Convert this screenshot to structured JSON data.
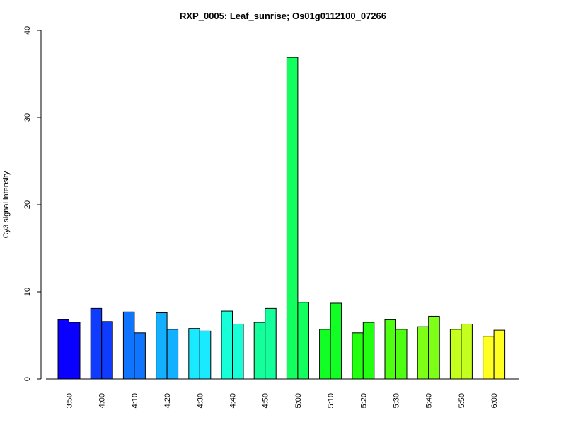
{
  "chart_data": {
    "type": "bar",
    "title": "RXP_0005: Leaf_sunrise; Os01g0112100_07266",
    "xlabel": "",
    "ylabel": "Cy3 signal intensity",
    "ylim": [
      0,
      40
    ],
    "yticks": [
      "0",
      "10",
      "20",
      "30",
      "40"
    ],
    "grid": false,
    "legend": "none",
    "categories": [
      "3:50",
      "4:00",
      "4:10",
      "4:20",
      "4:30",
      "4:40",
      "4:50",
      "5:00",
      "5:10",
      "5:20",
      "5:30",
      "5:40",
      "5:50",
      "6:00"
    ],
    "group_colors": [
      "#0A00FF",
      "#0F3BFF",
      "#0F75FF",
      "#12B0FF",
      "#19EAFF",
      "#16FFD8",
      "#14FF9B",
      "#13FF60",
      "#12FF25",
      "#22FF10",
      "#4EFF12",
      "#7DFF16",
      "#C5FF1E",
      "#FFFF22"
    ],
    "series": [
      {
        "values": [
          6.8,
          8.1,
          7.7,
          7.6,
          5.8,
          7.8,
          6.5,
          36.9,
          5.7,
          5.3,
          6.8,
          6.0,
          5.7,
          4.9
        ]
      },
      {
        "values": [
          6.5,
          6.6,
          5.3,
          5.7,
          5.5,
          6.3,
          8.1,
          8.8,
          8.7,
          6.5,
          5.7,
          7.2,
          6.3,
          5.6
        ]
      }
    ]
  }
}
